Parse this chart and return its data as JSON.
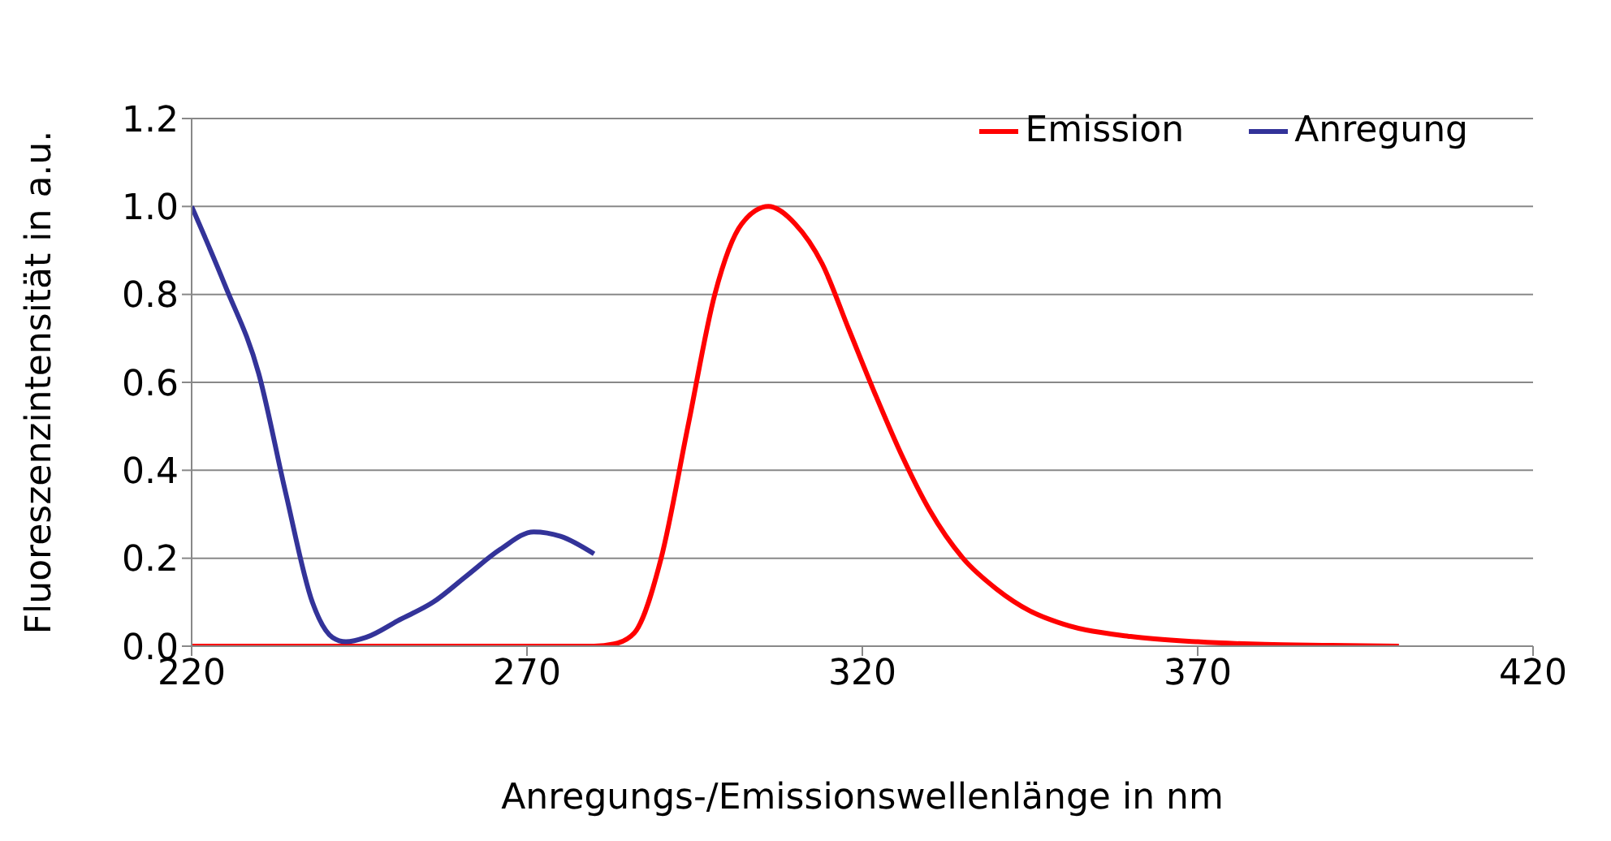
{
  "chart_data": {
    "type": "line",
    "xlabel": "Anregungs-/Emissionswellenlänge in nm",
    "ylabel": "Fluoreszenzintensität in a.u.",
    "xlim": [
      220,
      420
    ],
    "xticks": [
      220,
      270,
      320,
      370,
      420
    ],
    "ylim": [
      0,
      1.2
    ],
    "yticks": [
      {
        "value": 0,
        "label": "0.0"
      },
      {
        "value": 0.2,
        "label": "0.2"
      },
      {
        "value": 0.4,
        "label": "0.4"
      },
      {
        "value": 0.6,
        "label": "0.6"
      },
      {
        "value": 0.8,
        "label": "0.8"
      },
      {
        "value": 1,
        "label": "1.0"
      },
      {
        "value": 1.2,
        "label": "1.2"
      }
    ],
    "grid": "y",
    "legend": "top right",
    "marker": "none",
    "line_style": "solid",
    "series": [
      {
        "name": "Emission",
        "color": "#ff0000",
        "x": [
          220,
          250,
          270,
          280,
          283,
          286,
          290,
          294,
          298,
          302,
          306,
          310,
          314,
          318,
          322,
          326,
          330,
          335,
          340,
          345,
          350,
          360,
          370,
          380,
          390,
          400
        ],
        "values": [
          0,
          0,
          0,
          0,
          0.005,
          0.03,
          0.2,
          0.5,
          0.8,
          0.96,
          1.0,
          0.96,
          0.87,
          0.72,
          0.57,
          0.43,
          0.31,
          0.2,
          0.13,
          0.08,
          0.05,
          0.022,
          0.01,
          0.004,
          0.002,
          0
        ]
      },
      {
        "name": "Anregung",
        "color": "#333399",
        "x": [
          220,
          225,
          230,
          234,
          238,
          241,
          243,
          246,
          251,
          256,
          261,
          266,
          271,
          275,
          280
        ],
        "values": [
          1.0,
          0.82,
          0.62,
          0.35,
          0.1,
          0.02,
          0.01,
          0.02,
          0.06,
          0.1,
          0.16,
          0.22,
          0.26,
          0.25,
          0.21
        ]
      }
    ]
  }
}
